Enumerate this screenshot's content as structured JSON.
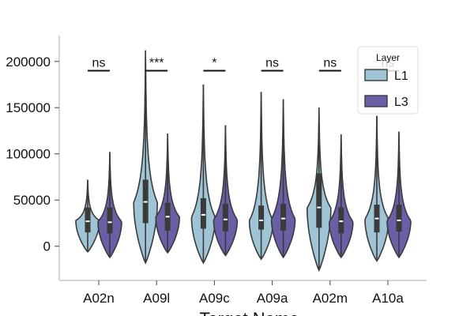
{
  "chart_data": {
    "type": "violin",
    "xlabel": "Target Name",
    "ylabel": "",
    "ylim": [
      -37000,
      228000
    ],
    "yticks": [
      0,
      50000,
      100000,
      150000,
      200000
    ],
    "ytick_labels": [
      "0",
      "50000",
      "100000",
      "150000",
      "200000"
    ],
    "categories": [
      "A02n",
      "A09l",
      "A09c",
      "A09a",
      "A02m",
      "A10a"
    ],
    "legend": {
      "title": "Layer",
      "position": "top-right"
    },
    "series": [
      {
        "name": "L1",
        "color": "#9ec4d6",
        "stats": [
          {
            "min": -6000,
            "q1": 15000,
            "median": 27000,
            "q3": 42000,
            "max": 72000,
            "mode": 28000
          },
          {
            "min": -18000,
            "q1": 25000,
            "median": 48000,
            "q3": 72000,
            "max": 212000,
            "mode": 48000
          },
          {
            "min": -18000,
            "q1": 19000,
            "median": 34000,
            "q3": 52000,
            "max": 175000,
            "mode": 32000
          },
          {
            "min": -14000,
            "q1": 18000,
            "median": 28000,
            "q3": 44000,
            "max": 167000,
            "mode": 28000
          },
          {
            "min": -26000,
            "q1": 20000,
            "median": 42000,
            "q3": 79000,
            "max": 150000,
            "mode": 42000
          },
          {
            "min": -16000,
            "q1": 15000,
            "median": 30000,
            "q3": 45000,
            "max": 141000,
            "mode": 30000
          }
        ]
      },
      {
        "name": "L3",
        "color": "#6a5fa6",
        "stats": [
          {
            "min": -12000,
            "q1": 14000,
            "median": 26000,
            "q3": 42000,
            "max": 102000,
            "mode": 27000
          },
          {
            "min": -7000,
            "q1": 17000,
            "median": 32000,
            "q3": 47000,
            "max": 122000,
            "mode": 32000
          },
          {
            "min": -10000,
            "q1": 16000,
            "median": 29000,
            "q3": 46000,
            "max": 131000,
            "mode": 29000
          },
          {
            "min": -12000,
            "q1": 17000,
            "median": 30000,
            "q3": 46000,
            "max": 159000,
            "mode": 30000
          },
          {
            "min": -12000,
            "q1": 14000,
            "median": 27000,
            "q3": 42000,
            "max": 121000,
            "mode": 27000
          },
          {
            "min": -12000,
            "q1": 16000,
            "median": 28000,
            "q3": 45000,
            "max": 124000,
            "mode": 28000
          }
        ]
      }
    ],
    "significance": [
      {
        "category": "A02n",
        "label": "ns"
      },
      {
        "category": "A09l",
        "label": "***"
      },
      {
        "category": "A09c",
        "label": "*"
      },
      {
        "category": "A09a",
        "label": "ns"
      },
      {
        "category": "A02m",
        "label": "ns"
      },
      {
        "category": "A10a",
        "label": "ns"
      }
    ],
    "significance_level": 190000
  }
}
